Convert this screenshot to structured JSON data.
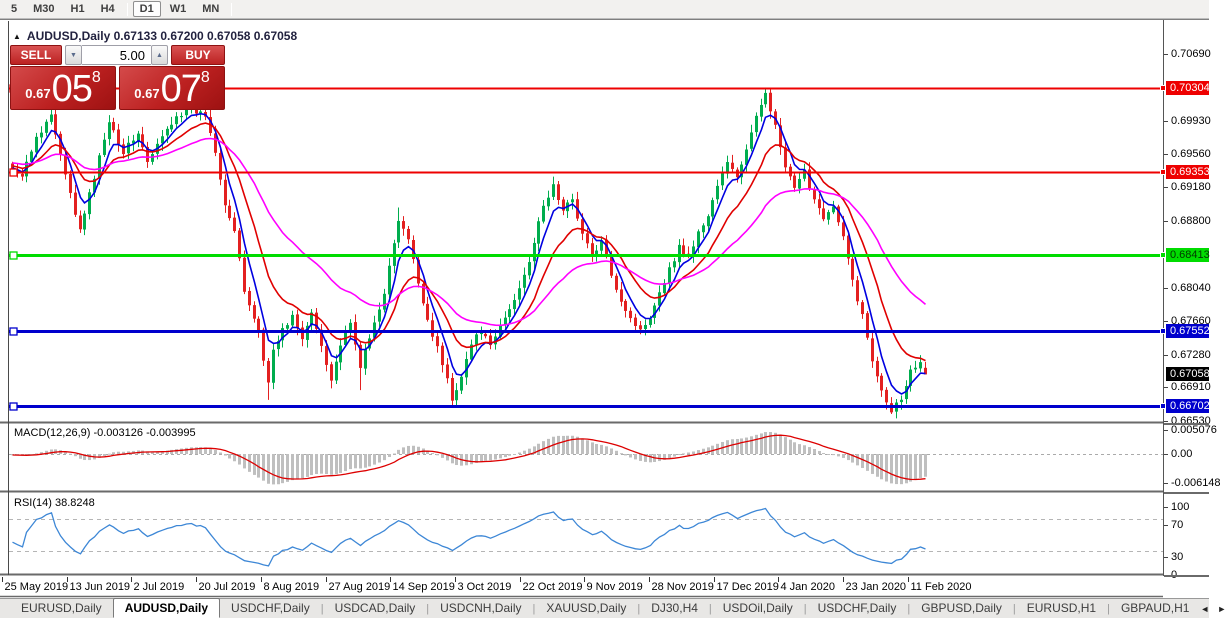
{
  "toolbar": {
    "timeframes": [
      {
        "label": "5",
        "active": false
      },
      {
        "label": "M30",
        "active": false
      },
      {
        "label": "H1",
        "active": false
      },
      {
        "label": "H4",
        "active": false
      },
      {
        "label": "D1",
        "active": true
      },
      {
        "label": "W1",
        "active": false
      },
      {
        "label": "MN",
        "active": false
      }
    ],
    "separators_after": [
      3,
      6
    ]
  },
  "chart": {
    "collapse_arrow": "▲",
    "symbol": "AUDUSD,Daily",
    "ohlc": "0.67133 0.67200 0.67058 0.67058"
  },
  "trade": {
    "sell_label": "SELL",
    "buy_label": "BUY",
    "volume": "5.00",
    "spinner_down_icon": "▼",
    "spinner_up_icon": "▲",
    "sell_price": {
      "prefix": "0.67",
      "main": "05",
      "sup": "8"
    },
    "buy_price": {
      "prefix": "0.67",
      "main": "07",
      "sup": "8"
    }
  },
  "indicators": {
    "macd": {
      "label": "MACD(12,26,9) -0.003126 -0.003995"
    },
    "rsi": {
      "label": "RSI(14) 38.8248"
    }
  },
  "tabs": {
    "items": [
      "EURUSD,Daily",
      "AUDUSD,Daily",
      "USDCHF,Daily",
      "USDCAD,Daily",
      "USDCNH,Daily",
      "XAUUSD,Daily",
      "DJ30,H4",
      "USDOil,Daily",
      "USDCHF,Daily",
      "GBPUSD,Daily",
      "EURUSD,H1",
      "GBPAUD,H1"
    ],
    "active_index": 1,
    "left_arrow": "◄",
    "right_arrow": "►"
  },
  "chart_data": {
    "type": "candlestick",
    "symbol": "AUDUSD",
    "timeframe": "Daily",
    "ylim": [
      0.66507,
      0.70973
    ],
    "grid": false,
    "y_ticks": [
      {
        "label": "0.70690",
        "value": 0.7069
      },
      {
        "label": "0.69930",
        "value": 0.6993
      },
      {
        "label": "0.69560",
        "value": 0.6956
      },
      {
        "label": "0.69180",
        "value": 0.6918
      },
      {
        "label": "0.68800",
        "value": 0.688
      },
      {
        "label": "0.68040",
        "value": 0.6804
      },
      {
        "label": "0.67660",
        "value": 0.6766
      },
      {
        "label": "0.67280",
        "value": 0.6728
      },
      {
        "label": "0.66910",
        "value": 0.6691
      },
      {
        "label": "0.66530",
        "value": 0.6653
      }
    ],
    "badges": [
      {
        "label": "0.70304",
        "value": 0.70304,
        "bg": "#ee0000",
        "fg": "#ffffff",
        "handle": true
      },
      {
        "label": "0.69353",
        "value": 0.69353,
        "bg": "#ee0000",
        "fg": "#ffffff",
        "handle": true
      },
      {
        "label": "0.68413",
        "value": 0.68413,
        "bg": "#00dc00",
        "fg": "#003800",
        "handle": true
      },
      {
        "label": "0.67552",
        "value": 0.67552,
        "bg": "#0000cd",
        "fg": "#ffffff",
        "handle": true
      },
      {
        "label": "0.67058",
        "value": 0.67058,
        "bg": "#000000",
        "fg": "#ffffff",
        "handle": false
      },
      {
        "label": "0.66702",
        "value": 0.66702,
        "bg": "#0000cd",
        "fg": "#ffffff",
        "handle": true
      }
    ],
    "hlines": [
      {
        "value": 0.70304,
        "color": "#ee0000",
        "width": 2
      },
      {
        "value": 0.69353,
        "color": "#ee0000",
        "width": 2
      },
      {
        "value": 0.68413,
        "color": "#00dc00",
        "width": 3
      },
      {
        "value": 0.67552,
        "color": "#0000cd",
        "width": 3
      },
      {
        "value": 0.66702,
        "color": "#0000cd",
        "width": 3
      }
    ],
    "x_labels": [
      "25 May 2019",
      "13 Jun 2019",
      "2 Jul 2019",
      "20 Jul 2019",
      "8 Aug 2019",
      "27 Aug 2019",
      "14 Sep 2019",
      "3 Oct 2019",
      "22 Oct 2019",
      "9 Nov 2019",
      "28 Nov 2019",
      "17 Dec 2019",
      "4 Jan 2020",
      "23 Jan 2020",
      "11 Feb 2020"
    ],
    "bars_total": 190,
    "close_waypoints": [
      [
        0,
        0.694
      ],
      [
        2,
        0.693
      ],
      [
        5,
        0.6975
      ],
      [
        8,
        0.7
      ],
      [
        11,
        0.693
      ],
      [
        14,
        0.6868
      ],
      [
        17,
        0.693
      ],
      [
        20,
        0.6995
      ],
      [
        23,
        0.6958
      ],
      [
        26,
        0.698
      ],
      [
        28,
        0.6945
      ],
      [
        31,
        0.6975
      ],
      [
        34,
        0.7
      ],
      [
        37,
        0.7005
      ],
      [
        40,
        0.7
      ],
      [
        42,
        0.696
      ],
      [
        44,
        0.69
      ],
      [
        46,
        0.6868
      ],
      [
        48,
        0.68
      ],
      [
        51,
        0.6755
      ],
      [
        52,
        0.6722
      ],
      [
        53,
        0.67
      ],
      [
        54,
        0.6732
      ],
      [
        56,
        0.6756
      ],
      [
        58,
        0.6772
      ],
      [
        60,
        0.6744
      ],
      [
        62,
        0.6776
      ],
      [
        64,
        0.674
      ],
      [
        66,
        0.67
      ],
      [
        68,
        0.674
      ],
      [
        70,
        0.6762
      ],
      [
        72,
        0.6716
      ],
      [
        74,
        0.6746
      ],
      [
        77,
        0.68
      ],
      [
        80,
        0.688
      ],
      [
        82,
        0.6858
      ],
      [
        84,
        0.681
      ],
      [
        86,
        0.6768
      ],
      [
        88,
        0.6735
      ],
      [
        90,
        0.67
      ],
      [
        91,
        0.6676
      ],
      [
        93,
        0.6706
      ],
      [
        95,
        0.674
      ],
      [
        97,
        0.6756
      ],
      [
        99,
        0.6736
      ],
      [
        101,
        0.676
      ],
      [
        104,
        0.679
      ],
      [
        107,
        0.6836
      ],
      [
        110,
        0.6896
      ],
      [
        112,
        0.692
      ],
      [
        114,
        0.689
      ],
      [
        116,
        0.6906
      ],
      [
        118,
        0.6865
      ],
      [
        120,
        0.684
      ],
      [
        122,
        0.6856
      ],
      [
        124,
        0.682
      ],
      [
        126,
        0.679
      ],
      [
        128,
        0.677
      ],
      [
        130,
        0.6755
      ],
      [
        132,
        0.6772
      ],
      [
        134,
        0.68
      ],
      [
        136,
        0.6825
      ],
      [
        138,
        0.685
      ],
      [
        140,
        0.684
      ],
      [
        142,
        0.6866
      ],
      [
        144,
        0.6886
      ],
      [
        146,
        0.692
      ],
      [
        148,
        0.6945
      ],
      [
        150,
        0.693
      ],
      [
        152,
        0.696
      ],
      [
        154,
        0.6996
      ],
      [
        156,
        0.7028
      ],
      [
        158,
        0.6986
      ],
      [
        160,
        0.694
      ],
      [
        162,
        0.6915
      ],
      [
        164,
        0.6935
      ],
      [
        166,
        0.6905
      ],
      [
        168,
        0.6885
      ],
      [
        170,
        0.6895
      ],
      [
        172,
        0.686
      ],
      [
        174,
        0.6812
      ],
      [
        176,
        0.6772
      ],
      [
        178,
        0.6722
      ],
      [
        180,
        0.669
      ],
      [
        182,
        0.6665
      ],
      [
        184,
        0.668
      ],
      [
        186,
        0.671
      ],
      [
        188,
        0.6722
      ],
      [
        189,
        0.6706
      ]
    ],
    "wick_overrides": {
      "8": [
        0.7006,
        null
      ],
      "37": [
        0.7008,
        null
      ],
      "53": [
        null,
        0.6677
      ],
      "66": [
        null,
        0.669
      ],
      "72": [
        null,
        0.6688
      ],
      "80": [
        0.6895,
        null
      ],
      "91": [
        null,
        0.667
      ],
      "112": [
        0.693,
        null
      ],
      "156": [
        0.7031,
        null
      ],
      "182": [
        null,
        0.6661
      ]
    },
    "last_bar_ohlc": [
      0.67133,
      0.672,
      0.67058,
      0.67058
    ],
    "candle_colors": {
      "up": "#00ad4e",
      "down": "#e32020"
    },
    "ma": [
      {
        "period": 5,
        "color": "#0000e0"
      },
      {
        "period": 13,
        "color": "#e00000"
      },
      {
        "period": 34,
        "color": "#ff00ff"
      }
    ],
    "macd": {
      "params": [
        12,
        26,
        9
      ],
      "hist_color": "#bfbfbf",
      "signal_color": "#dd0000",
      "y_ticks": [
        {
          "label": "0.005076",
          "value": 0.005076
        },
        {
          "label": "0.00",
          "value": 0
        },
        {
          "label": "-0.006148",
          "value": -0.006148
        }
      ]
    },
    "rsi": {
      "period": 14,
      "value": 38.8248,
      "line_color": "#3d87d6",
      "levels": [
        70,
        30
      ],
      "y_ticks": [
        {
          "label": "100",
          "value": 100
        },
        {
          "label": "70",
          "value": 70
        },
        {
          "label": "30",
          "value": 30
        },
        {
          "label": "0",
          "value": 0
        }
      ]
    }
  }
}
